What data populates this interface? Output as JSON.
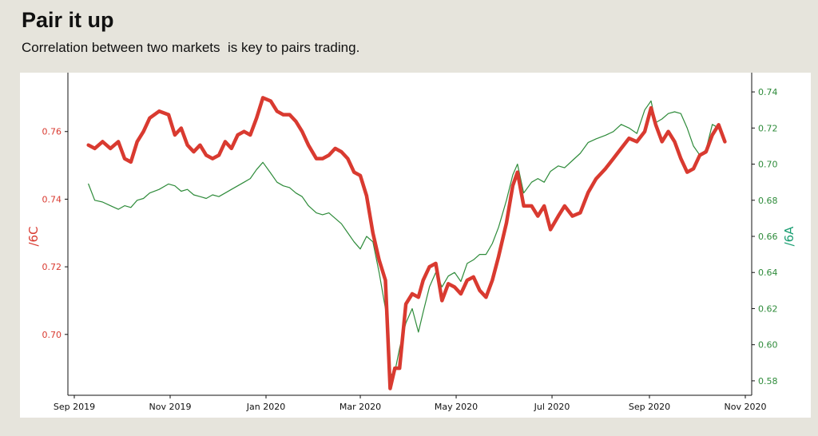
{
  "title": "Pair it up",
  "subtitle": "Correlation between two markets  is key to pairs trading.",
  "colors": {
    "series_6C": "#d93a30",
    "series_6A": "#2e8b3a",
    "label_6A": "#1a9e72",
    "background": "#e6e4dc"
  },
  "chart_data": {
    "type": "line",
    "title": "",
    "xlabel": "",
    "ylabel_left": "/6C",
    "ylabel_right": "/6A",
    "x_ticks": [
      "Sep 2019",
      "Nov 2019",
      "Jan 2020",
      "Mar 2020",
      "May 2020",
      "Jul 2020",
      "Sep 2020",
      "Nov 2020"
    ],
    "ylim_left": [
      0.682,
      0.776
    ],
    "ylim_right": [
      0.572,
      0.748
    ],
    "yticks_left": [
      "0.70",
      "0.72",
      "0.74",
      "0.76"
    ],
    "yticks_right": [
      "0.58",
      "0.60",
      "0.62",
      "0.64",
      "0.66",
      "0.68",
      "0.70",
      "0.72",
      "0.74"
    ],
    "grid": false,
    "series": [
      {
        "name": "/6C",
        "axis": "left",
        "points": [
          [
            "2019-09-10",
            0.756
          ],
          [
            "2019-09-14",
            0.755
          ],
          [
            "2019-09-19",
            0.757
          ],
          [
            "2019-09-24",
            0.755
          ],
          [
            "2019-09-29",
            0.757
          ],
          [
            "2019-10-03",
            0.752
          ],
          [
            "2019-10-07",
            0.751
          ],
          [
            "2019-10-11",
            0.757
          ],
          [
            "2019-10-15",
            0.76
          ],
          [
            "2019-10-19",
            0.764
          ],
          [
            "2019-10-25",
            0.766
          ],
          [
            "2019-10-31",
            0.765
          ],
          [
            "2019-11-04",
            0.759
          ],
          [
            "2019-11-08",
            0.761
          ],
          [
            "2019-11-12",
            0.756
          ],
          [
            "2019-11-16",
            0.754
          ],
          [
            "2019-11-20",
            0.756
          ],
          [
            "2019-11-24",
            0.753
          ],
          [
            "2019-11-28",
            0.752
          ],
          [
            "2019-12-02",
            0.753
          ],
          [
            "2019-12-06",
            0.757
          ],
          [
            "2019-12-10",
            0.755
          ],
          [
            "2019-12-14",
            0.759
          ],
          [
            "2019-12-18",
            0.76
          ],
          [
            "2019-12-22",
            0.759
          ],
          [
            "2019-12-26",
            0.764
          ],
          [
            "2019-12-30",
            0.77
          ],
          [
            "2020-01-04",
            0.769
          ],
          [
            "2020-01-08",
            0.766
          ],
          [
            "2020-01-12",
            0.765
          ],
          [
            "2020-01-16",
            0.765
          ],
          [
            "2020-01-20",
            0.763
          ],
          [
            "2020-01-24",
            0.76
          ],
          [
            "2020-01-28",
            0.756
          ],
          [
            "2020-02-02",
            0.752
          ],
          [
            "2020-02-06",
            0.752
          ],
          [
            "2020-02-10",
            0.753
          ],
          [
            "2020-02-14",
            0.755
          ],
          [
            "2020-02-18",
            0.754
          ],
          [
            "2020-02-22",
            0.752
          ],
          [
            "2020-02-26",
            0.748
          ],
          [
            "2020-03-01",
            0.747
          ],
          [
            "2020-03-05",
            0.741
          ],
          [
            "2020-03-09",
            0.73
          ],
          [
            "2020-03-13",
            0.722
          ],
          [
            "2020-03-17",
            0.716
          ],
          [
            "2020-03-20",
            0.684
          ],
          [
            "2020-03-23",
            0.69
          ],
          [
            "2020-03-26",
            0.69
          ],
          [
            "2020-03-30",
            0.709
          ],
          [
            "2020-04-03",
            0.712
          ],
          [
            "2020-04-07",
            0.711
          ],
          [
            "2020-04-10",
            0.716
          ],
          [
            "2020-04-14",
            0.72
          ],
          [
            "2020-04-18",
            0.721
          ],
          [
            "2020-04-22",
            0.71
          ],
          [
            "2020-04-26",
            0.715
          ],
          [
            "2020-04-30",
            0.714
          ],
          [
            "2020-05-04",
            0.712
          ],
          [
            "2020-05-08",
            0.716
          ],
          [
            "2020-05-12",
            0.717
          ],
          [
            "2020-05-16",
            0.713
          ],
          [
            "2020-05-20",
            0.711
          ],
          [
            "2020-05-24",
            0.716
          ],
          [
            "2020-05-28",
            0.723
          ],
          [
            "2020-06-02",
            0.733
          ],
          [
            "2020-06-06",
            0.744
          ],
          [
            "2020-06-09",
            0.748
          ],
          [
            "2020-06-13",
            0.738
          ],
          [
            "2020-06-18",
            0.738
          ],
          [
            "2020-06-22",
            0.735
          ],
          [
            "2020-06-26",
            0.738
          ],
          [
            "2020-06-30",
            0.731
          ],
          [
            "2020-07-05",
            0.735
          ],
          [
            "2020-07-09",
            0.738
          ],
          [
            "2020-07-14",
            0.735
          ],
          [
            "2020-07-19",
            0.736
          ],
          [
            "2020-07-24",
            0.742
          ],
          [
            "2020-07-29",
            0.746
          ],
          [
            "2020-08-04",
            0.749
          ],
          [
            "2020-08-09",
            0.752
          ],
          [
            "2020-08-14",
            0.755
          ],
          [
            "2020-08-19",
            0.758
          ],
          [
            "2020-08-24",
            0.757
          ],
          [
            "2020-08-29",
            0.76
          ],
          [
            "2020-09-02",
            0.767
          ],
          [
            "2020-09-05",
            0.762
          ],
          [
            "2020-09-09",
            0.757
          ],
          [
            "2020-09-13",
            0.76
          ],
          [
            "2020-09-17",
            0.757
          ],
          [
            "2020-09-21",
            0.752
          ],
          [
            "2020-09-25",
            0.748
          ],
          [
            "2020-09-29",
            0.749
          ],
          [
            "2020-10-03",
            0.753
          ],
          [
            "2020-10-07",
            0.754
          ],
          [
            "2020-10-11",
            0.759
          ],
          [
            "2020-10-15",
            0.762
          ],
          [
            "2020-10-19",
            0.757
          ]
        ]
      },
      {
        "name": "/6A",
        "axis": "right",
        "points": [
          [
            "2019-09-10",
            0.689
          ],
          [
            "2019-09-14",
            0.68
          ],
          [
            "2019-09-19",
            0.679
          ],
          [
            "2019-09-24",
            0.677
          ],
          [
            "2019-09-29",
            0.675
          ],
          [
            "2019-10-03",
            0.677
          ],
          [
            "2019-10-07",
            0.676
          ],
          [
            "2019-10-11",
            0.68
          ],
          [
            "2019-10-15",
            0.681
          ],
          [
            "2019-10-19",
            0.684
          ],
          [
            "2019-10-25",
            0.686
          ],
          [
            "2019-10-31",
            0.689
          ],
          [
            "2019-11-04",
            0.688
          ],
          [
            "2019-11-08",
            0.685
          ],
          [
            "2019-11-12",
            0.686
          ],
          [
            "2019-11-16",
            0.683
          ],
          [
            "2019-11-20",
            0.682
          ],
          [
            "2019-11-24",
            0.681
          ],
          [
            "2019-11-28",
            0.683
          ],
          [
            "2019-12-02",
            0.682
          ],
          [
            "2019-12-06",
            0.684
          ],
          [
            "2019-12-10",
            0.686
          ],
          [
            "2019-12-14",
            0.688
          ],
          [
            "2019-12-18",
            0.69
          ],
          [
            "2019-12-22",
            0.692
          ],
          [
            "2019-12-26",
            0.697
          ],
          [
            "2019-12-30",
            0.701
          ],
          [
            "2020-01-04",
            0.695
          ],
          [
            "2020-01-08",
            0.69
          ],
          [
            "2020-01-12",
            0.688
          ],
          [
            "2020-01-16",
            0.687
          ],
          [
            "2020-01-20",
            0.684
          ],
          [
            "2020-01-24",
            0.682
          ],
          [
            "2020-01-28",
            0.677
          ],
          [
            "2020-02-02",
            0.673
          ],
          [
            "2020-02-06",
            0.672
          ],
          [
            "2020-02-10",
            0.673
          ],
          [
            "2020-02-14",
            0.67
          ],
          [
            "2020-02-18",
            0.667
          ],
          [
            "2020-02-22",
            0.662
          ],
          [
            "2020-02-26",
            0.657
          ],
          [
            "2020-03-01",
            0.653
          ],
          [
            "2020-03-05",
            0.66
          ],
          [
            "2020-03-09",
            0.657
          ],
          [
            "2020-03-13",
            0.64
          ],
          [
            "2020-03-17",
            0.62
          ],
          [
            "2020-03-20",
            0.583
          ],
          [
            "2020-03-23",
            0.585
          ],
          [
            "2020-03-26",
            0.598
          ],
          [
            "2020-03-30",
            0.612
          ],
          [
            "2020-04-03",
            0.62
          ],
          [
            "2020-04-07",
            0.607
          ],
          [
            "2020-04-10",
            0.618
          ],
          [
            "2020-04-14",
            0.632
          ],
          [
            "2020-04-18",
            0.64
          ],
          [
            "2020-04-22",
            0.632
          ],
          [
            "2020-04-26",
            0.638
          ],
          [
            "2020-04-30",
            0.64
          ],
          [
            "2020-05-04",
            0.635
          ],
          [
            "2020-05-08",
            0.645
          ],
          [
            "2020-05-12",
            0.647
          ],
          [
            "2020-05-16",
            0.65
          ],
          [
            "2020-05-20",
            0.65
          ],
          [
            "2020-05-24",
            0.656
          ],
          [
            "2020-05-28",
            0.665
          ],
          [
            "2020-06-02",
            0.68
          ],
          [
            "2020-06-06",
            0.694
          ],
          [
            "2020-06-09",
            0.7
          ],
          [
            "2020-06-13",
            0.684
          ],
          [
            "2020-06-18",
            0.69
          ],
          [
            "2020-06-22",
            0.692
          ],
          [
            "2020-06-26",
            0.69
          ],
          [
            "2020-06-30",
            0.696
          ],
          [
            "2020-07-05",
            0.699
          ],
          [
            "2020-07-09",
            0.698
          ],
          [
            "2020-07-14",
            0.702
          ],
          [
            "2020-07-19",
            0.706
          ],
          [
            "2020-07-24",
            0.712
          ],
          [
            "2020-07-29",
            0.714
          ],
          [
            "2020-08-04",
            0.716
          ],
          [
            "2020-08-09",
            0.718
          ],
          [
            "2020-08-14",
            0.722
          ],
          [
            "2020-08-19",
            0.72
          ],
          [
            "2020-08-24",
            0.717
          ],
          [
            "2020-08-29",
            0.73
          ],
          [
            "2020-09-02",
            0.735
          ],
          [
            "2020-09-05",
            0.723
          ],
          [
            "2020-09-09",
            0.725
          ],
          [
            "2020-09-13",
            0.728
          ],
          [
            "2020-09-17",
            0.729
          ],
          [
            "2020-09-21",
            0.728
          ],
          [
            "2020-09-25",
            0.72
          ],
          [
            "2020-09-29",
            0.71
          ],
          [
            "2020-10-03",
            0.705
          ],
          [
            "2020-10-07",
            0.708
          ],
          [
            "2020-10-11",
            0.722
          ],
          [
            "2020-10-15",
            0.72
          ],
          [
            "2020-10-19",
            0.713
          ]
        ]
      }
    ]
  }
}
